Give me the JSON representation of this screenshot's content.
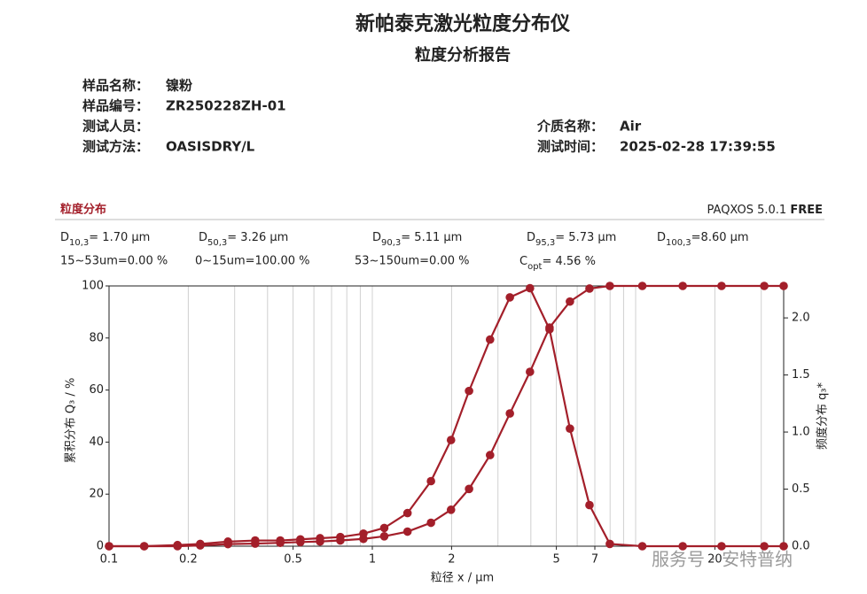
{
  "header": {
    "title": "新帕泰克激光粒度分布仪",
    "subtitle": "粒度分析报告"
  },
  "fields": [
    {
      "label": "样品名称：",
      "value": "镍粉"
    },
    {
      "label": "样品编号：",
      "value": "ZR250228ZH-01"
    },
    {
      "label": "测试人员："
    },
    {
      "label": "测试方法：",
      "value": "OASISDRY/L"
    },
    {
      "label": "介质名称：",
      "value": "Air"
    },
    {
      "label": "测试时间：",
      "value": "2025-02-28 17:39:55"
    }
  ],
  "section": {
    "title": "粒度分布",
    "software": "PAQXOS 5.0.1",
    "edition": "FREE"
  },
  "stats": [
    {
      "symbol": "D",
      "sub": "10,3",
      "text": "= 1.70 μm"
    },
    {
      "symbol": "D",
      "sub": "50,3",
      "text": "= 3.26 μm"
    },
    {
      "symbol": "D",
      "sub": "90,3",
      "text": "= 5.11 μm"
    },
    {
      "symbol": "D",
      "sub": "95,3",
      "text": "= 5.73 μm"
    },
    {
      "symbol": "D",
      "sub": "100,3",
      "text": "=8.60 μm"
    }
  ],
  "ranges": [
    "15~53um=0.00 %",
    "0~15um=100.00 %",
    "53~150um=0.00 %"
  ],
  "copt": {
    "symbol": "C",
    "sub": "opt",
    "text": "= 4.56 %"
  },
  "watermark": "服务号 · 安特普纳",
  "chart_data": {
    "type": "line",
    "x_label": "粒径 x / μm",
    "y_label": "累积分布 Q₃ / %",
    "y2_label": "频度分布 q₃*",
    "log_x": true,
    "grid": true,
    "xlim": [
      0.1,
      36.5
    ],
    "ylim": [
      0,
      100
    ],
    "y2lim": [
      0,
      2.28
    ],
    "xticks": [
      0.1,
      0.2,
      0.5,
      1,
      2,
      5,
      7,
      20
    ],
    "xgrid": [
      0.2,
      0.3,
      0.4,
      0.5,
      0.6,
      0.7,
      0.8,
      0.9,
      1,
      2,
      3,
      4,
      5,
      6,
      7,
      8,
      9,
      10,
      20,
      30
    ],
    "yticks": [
      0,
      20,
      40,
      60,
      80,
      100
    ],
    "y2ticks": [
      {
        "value": 0,
        "label": "0.0"
      },
      {
        "value": 0.5,
        "label": "0.5"
      },
      {
        "value": 1,
        "label": "1.0"
      },
      {
        "value": 1.5,
        "label": "1.5"
      },
      {
        "value": 2,
        "label": "2.0"
      }
    ],
    "x": [
      0.1,
      0.136,
      0.182,
      0.222,
      0.283,
      0.359,
      0.447,
      0.533,
      0.633,
      0.756,
      0.925,
      1.11,
      1.36,
      1.67,
      1.99,
      2.33,
      2.8,
      3.33,
      3.97,
      4.71,
      5.63,
      6.68,
      7.98,
      10.6,
      15.1,
      21.2,
      30.8,
      36.5
    ],
    "series": [
      {
        "color": "#a31f2a",
        "values": [
          0,
          0,
          0,
          0.3,
          0.8,
          1.0,
          1.3,
          1.6,
          1.8,
          2.2,
          2.8,
          3.8,
          5.6,
          9,
          14,
          22,
          35,
          51,
          67,
          84,
          94,
          99,
          100,
          100,
          100,
          100,
          100,
          100
        ]
      },
      {
        "color": "#a31f2a",
        "axis": "y2",
        "values": [
          0,
          0,
          0.01,
          0.02,
          0.04,
          0.05,
          0.05,
          0.06,
          0.07,
          0.08,
          0.11,
          0.16,
          0.29,
          0.57,
          0.93,
          1.36,
          1.81,
          2.18,
          2.26,
          1.9,
          1.03,
          0.36,
          0.02,
          0,
          0,
          0,
          0,
          0
        ]
      }
    ]
  }
}
